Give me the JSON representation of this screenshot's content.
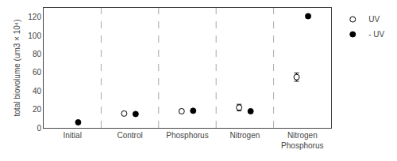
{
  "chart_data": {
    "type": "scatter",
    "categories": [
      "Initial",
      "Control",
      "Phosphorus",
      "Nitrogen",
      "Nitrogen\nPhosphorus"
    ],
    "ylabel": "total biovolume (um3 × 10⁴)",
    "ylim": [
      0,
      130
    ],
    "yticks": [
      0,
      20,
      40,
      60,
      80,
      100,
      120
    ],
    "grid": false,
    "legend": "right",
    "series": [
      {
        "name": "UV",
        "color": "#000000",
        "marker": "open",
        "values": [
          null,
          15.5,
          18.0,
          22.0,
          55.0
        ],
        "errors": [
          null,
          1.5,
          2.0,
          3.5,
          4.5
        ]
      },
      {
        "name": "- UV",
        "color": "#000000",
        "marker": "filled",
        "values": [
          6.0,
          15.0,
          18.5,
          18.0,
          121.0
        ],
        "errors": [
          0.5,
          1.0,
          1.0,
          1.5,
          2.0
        ]
      }
    ]
  }
}
